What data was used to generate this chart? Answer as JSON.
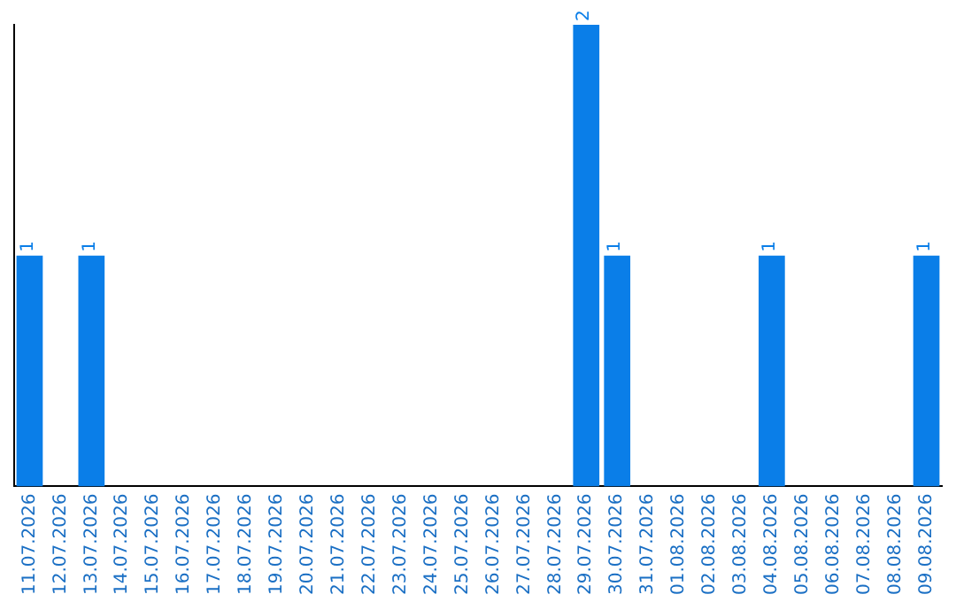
{
  "chart_data": {
    "type": "bar",
    "categories": [
      "11.07.2026",
      "12.07.2026",
      "13.07.2026",
      "14.07.2026",
      "15.07.2026",
      "16.07.2026",
      "17.07.2026",
      "18.07.2026",
      "19.07.2026",
      "20.07.2026",
      "21.07.2026",
      "22.07.2026",
      "23.07.2026",
      "24.07.2026",
      "25.07.2026",
      "26.07.2026",
      "27.07.2026",
      "28.07.2026",
      "29.07.2026",
      "30.07.2026",
      "31.07.2026",
      "01.08.2026",
      "02.08.2026",
      "03.08.2026",
      "04.08.2026",
      "05.08.2026",
      "06.08.2026",
      "07.08.2026",
      "08.08.2026",
      "09.08.2026"
    ],
    "values": [
      1,
      0,
      1,
      0,
      0,
      0,
      0,
      0,
      0,
      0,
      0,
      0,
      0,
      0,
      0,
      0,
      0,
      0,
      2,
      1,
      0,
      0,
      0,
      0,
      1,
      0,
      0,
      0,
      0,
      1
    ],
    "value_labels": [
      "1",
      null,
      "1",
      null,
      null,
      null,
      null,
      null,
      null,
      null,
      null,
      null,
      null,
      null,
      null,
      null,
      null,
      null,
      "2",
      "1",
      null,
      null,
      null,
      null,
      "1",
      null,
      null,
      null,
      null,
      "1"
    ],
    "color": "#0a7ee8",
    "grid": false,
    "legend": false,
    "tick_labels": "x"
  }
}
